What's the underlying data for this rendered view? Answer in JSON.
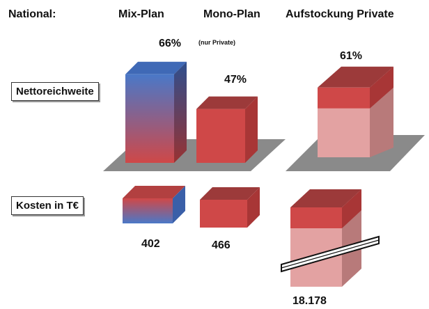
{
  "header": {
    "national": "National:",
    "mix_plan": "Mix-Plan",
    "mono_plan": "Mono-Plan",
    "mono_note": "(nur Private)",
    "aufstockung": "Aufstockung Private"
  },
  "rows": {
    "reach_label": "Nettoreichweite",
    "cost_label": "Kosten in T€"
  },
  "chart_data": {
    "type": "bar",
    "categories": [
      "Mix-Plan",
      "Mono-Plan",
      "Aufstockung Private"
    ],
    "series": [
      {
        "name": "Nettoreichweite",
        "values": [
          66,
          47,
          61
        ],
        "labels": [
          "66%",
          "47%",
          "61%"
        ],
        "unit": "%"
      },
      {
        "name": "Kosten in T€",
        "values": [
          402,
          466,
          18178
        ],
        "labels": [
          "402",
          "466",
          "18.178"
        ],
        "unit": "T€"
      }
    ],
    "notes": {
      "mono_plan_scope": "(nur Private)",
      "aufstockung_cost_axis": "broken"
    },
    "colors": {
      "mix_top": "#4a78c8",
      "mix_bottom": "#cf4848",
      "red_front": "#cf4848",
      "red_top": "#9c3a3a",
      "red_side": "#a83636",
      "pink_front": "#e3a2a2",
      "pink_side": "#b87a7a",
      "floor": "#8a8a8a"
    }
  }
}
